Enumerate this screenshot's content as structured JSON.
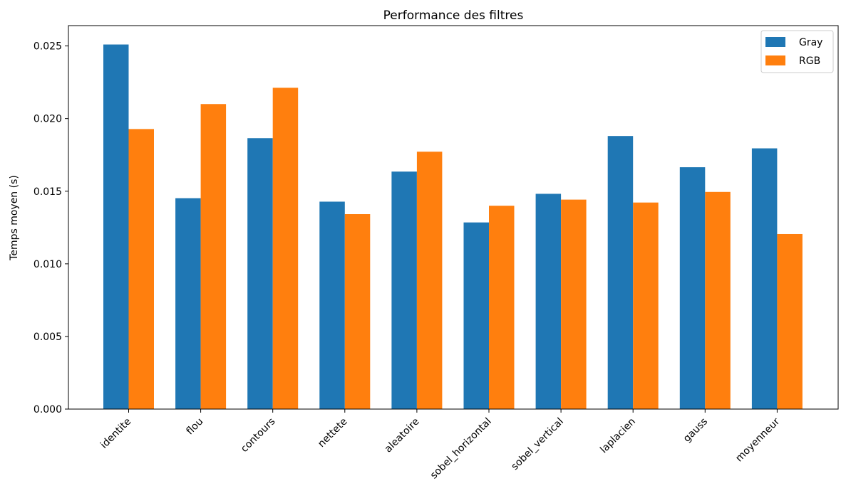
{
  "chart_data": {
    "type": "bar",
    "title": "Performance des filtres",
    "xlabel": "",
    "ylabel": "Temps moyen (s)",
    "ylim": [
      0,
      0.0264
    ],
    "yticks": [
      "0.000",
      "0.005",
      "0.010",
      "0.015",
      "0.020",
      "0.025"
    ],
    "ytick_values": [
      0,
      0.005,
      0.01,
      0.015,
      0.02,
      0.025
    ],
    "categories": [
      "identite",
      "flou",
      "contours",
      "nettete",
      "aleatoire",
      "sobel_horizontal",
      "sobel_vertical",
      "laplacien",
      "gauss",
      "moyenneur"
    ],
    "series": [
      {
        "name": "Gray",
        "color": "#1f77b4",
        "values": [
          0.0251,
          0.01452,
          0.01865,
          0.01428,
          0.01635,
          0.01285,
          0.01482,
          0.0188,
          0.01665,
          0.01795
        ]
      },
      {
        "name": "RGB",
        "color": "#ff7f0e",
        "values": [
          0.01928,
          0.021,
          0.02212,
          0.01342,
          0.01772,
          0.014,
          0.01442,
          0.01422,
          0.01495,
          0.01205
        ]
      }
    ],
    "grid": false,
    "legend_position": "top-right"
  }
}
